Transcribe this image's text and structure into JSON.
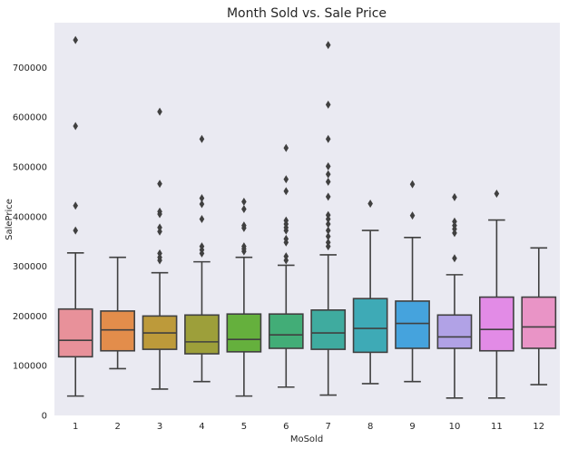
{
  "chart_data": {
    "type": "box",
    "title": "Month Sold vs. Sale Price",
    "xlabel": "MoSold",
    "ylabel": "SalePrice",
    "ylim": [
      0,
      790000
    ],
    "yticks": [
      0,
      100000,
      200000,
      300000,
      400000,
      500000,
      600000,
      700000
    ],
    "grid": false,
    "background": "#eaeaf2",
    "categories": [
      "1",
      "2",
      "3",
      "4",
      "5",
      "6",
      "7",
      "8",
      "9",
      "10",
      "11",
      "12"
    ],
    "boxes": [
      {
        "category": "1",
        "color": "#e8919a",
        "whisker_low": 39000,
        "q1": 118000,
        "median": 151000,
        "q3": 214000,
        "whisker_high": 327000,
        "outliers": [
          755000,
          582000,
          422000,
          372000
        ]
      },
      {
        "category": "2",
        "color": "#e38d4b",
        "whisker_low": 94000,
        "q1": 130000,
        "median": 172000,
        "q3": 210000,
        "whisker_high": 318000,
        "outliers": []
      },
      {
        "category": "3",
        "color": "#bd9a3a",
        "whisker_low": 53000,
        "q1": 133000,
        "median": 166000,
        "q3": 200000,
        "whisker_high": 287000,
        "outliers": [
          611000,
          466000,
          410000,
          405000,
          378000,
          370000,
          326000,
          318000,
          312000
        ]
      },
      {
        "category": "4",
        "color": "#9d9f3a",
        "whisker_low": 68000,
        "q1": 124000,
        "median": 148000,
        "q3": 202000,
        "whisker_high": 309000,
        "outliers": [
          556000,
          437000,
          425000,
          395000,
          340000,
          333000,
          326000
        ]
      },
      {
        "category": "5",
        "color": "#65b03d",
        "whisker_low": 39000,
        "q1": 128000,
        "median": 153000,
        "q3": 204000,
        "whisker_high": 318000,
        "outliers": [
          430000,
          415000,
          382000,
          377000,
          340000,
          335000,
          330000
        ]
      },
      {
        "category": "6",
        "color": "#42ad77",
        "whisker_low": 57000,
        "q1": 135000,
        "median": 162000,
        "q3": 204000,
        "whisker_high": 302000,
        "outliers": [
          538000,
          475000,
          451000,
          392000,
          385000,
          378000,
          372000,
          355000,
          348000,
          320000,
          312000
        ]
      },
      {
        "category": "7",
        "color": "#3fab9f",
        "whisker_low": 41000,
        "q1": 133000,
        "median": 166000,
        "q3": 212000,
        "whisker_high": 323000,
        "outliers": [
          745000,
          625000,
          556000,
          501000,
          485000,
          470000,
          440000,
          403000,
          395000,
          385000,
          372000,
          360000,
          348000,
          340000
        ]
      },
      {
        "category": "8",
        "color": "#3eaab6",
        "whisker_low": 64000,
        "q1": 127000,
        "median": 175000,
        "q3": 235000,
        "whisker_high": 372000,
        "outliers": [
          426000
        ]
      },
      {
        "category": "9",
        "color": "#45a3dd",
        "whisker_low": 68000,
        "q1": 135000,
        "median": 185000,
        "q3": 230000,
        "whisker_high": 358000,
        "outliers": [
          465000,
          402000
        ]
      },
      {
        "category": "10",
        "color": "#b1a2e6",
        "whisker_low": 35000,
        "q1": 135000,
        "median": 158000,
        "q3": 202000,
        "whisker_high": 283000,
        "outliers": [
          439000,
          390000,
          382000,
          375000,
          367000,
          316000
        ]
      },
      {
        "category": "11",
        "color": "#e28be6",
        "whisker_low": 35000,
        "q1": 130000,
        "median": 173000,
        "q3": 238000,
        "whisker_high": 393000,
        "outliers": [
          446000
        ]
      },
      {
        "category": "12",
        "color": "#e994c6",
        "whisker_low": 62000,
        "q1": 135000,
        "median": 178000,
        "q3": 238000,
        "whisker_high": 337000,
        "outliers": []
      }
    ]
  }
}
